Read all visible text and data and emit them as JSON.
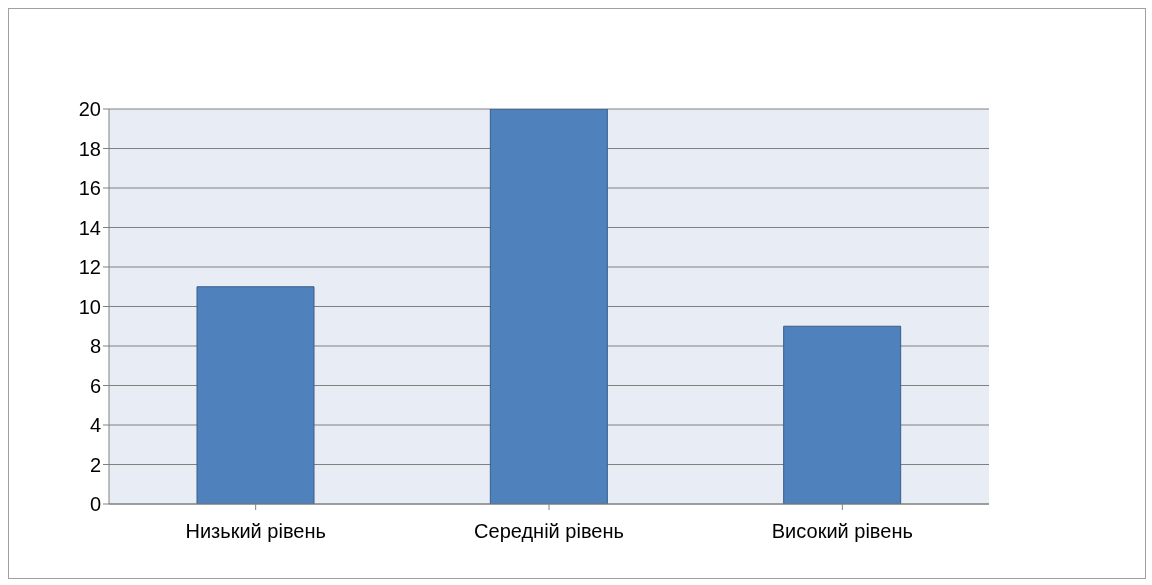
{
  "chart_data": {
    "type": "bar",
    "categories": [
      "Низький рівень",
      "Середній рівень",
      "Високий рівень"
    ],
    "values": [
      11,
      20,
      9
    ],
    "color": "#4f81bd",
    "ylim": [
      0,
      20
    ],
    "yticks": [
      0,
      2,
      4,
      6,
      8,
      10,
      12,
      14,
      16,
      18,
      20
    ],
    "grid": "y"
  }
}
